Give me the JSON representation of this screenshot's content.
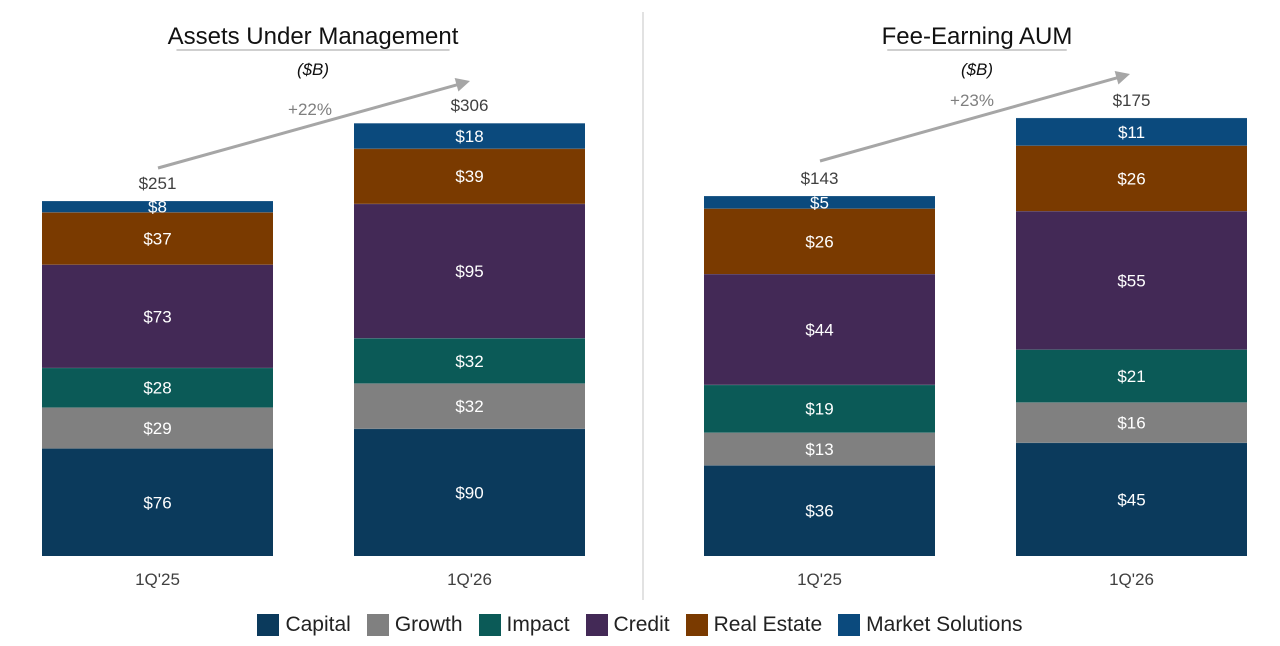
{
  "colors": {
    "Capital": "#0b3a5c",
    "Growth": "#808080",
    "Impact": "#0b5a57",
    "Credit": "#432956",
    "Real Estate": "#7a3a00",
    "Market Solutions": "#0b4a7d"
  },
  "legend": [
    {
      "label": "Capital",
      "icon": "square-swatch"
    },
    {
      "label": "Growth",
      "icon": "square-swatch"
    },
    {
      "label": "Impact",
      "icon": "square-swatch"
    },
    {
      "label": "Credit",
      "icon": "square-swatch"
    },
    {
      "label": "Real Estate",
      "icon": "square-swatch"
    },
    {
      "label": "Market Solutions",
      "icon": "square-swatch"
    }
  ],
  "chart_data": [
    {
      "type": "bar",
      "stacked": true,
      "title": "Assets Under Management",
      "subtitle": "($B)",
      "categories": [
        "1Q'25",
        "1Q'26"
      ],
      "series": [
        {
          "name": "Capital",
          "values": [
            76,
            90
          ],
          "labels": [
            "$76",
            "$90"
          ]
        },
        {
          "name": "Growth",
          "values": [
            29,
            32
          ],
          "labels": [
            "$29",
            "$32"
          ]
        },
        {
          "name": "Impact",
          "values": [
            28,
            32
          ],
          "labels": [
            "$28",
            "$32"
          ]
        },
        {
          "name": "Credit",
          "values": [
            73,
            95
          ],
          "labels": [
            "$73",
            "$95"
          ]
        },
        {
          "name": "Real Estate",
          "values": [
            37,
            39
          ],
          "labels": [
            "$37",
            "$39"
          ]
        },
        {
          "name": "Market Solutions",
          "values": [
            8,
            18
          ],
          "labels": [
            "$8",
            "$18"
          ]
        }
      ],
      "totals": [
        251,
        306
      ],
      "total_labels": [
        "$251",
        "$306"
      ],
      "growth_label": "+22%",
      "grid": false
    },
    {
      "type": "bar",
      "stacked": true,
      "title": "Fee-Earning AUM",
      "subtitle": "($B)",
      "categories": [
        "1Q'25",
        "1Q'26"
      ],
      "series": [
        {
          "name": "Capital",
          "values": [
            36,
            45
          ],
          "labels": [
            "$36",
            "$45"
          ]
        },
        {
          "name": "Growth",
          "values": [
            13,
            16
          ],
          "labels": [
            "$13",
            "$16"
          ]
        },
        {
          "name": "Impact",
          "values": [
            19,
            21
          ],
          "labels": [
            "$19",
            "$21"
          ]
        },
        {
          "name": "Credit",
          "values": [
            44,
            55
          ],
          "labels": [
            "$44",
            "$55"
          ]
        },
        {
          "name": "Real Estate",
          "values": [
            26,
            26
          ],
          "labels": [
            "$26",
            "$26"
          ]
        },
        {
          "name": "Market Solutions",
          "values": [
            5,
            11
          ],
          "labels": [
            "$5",
            "$11"
          ]
        }
      ],
      "totals": [
        143,
        175
      ],
      "total_labels": [
        "$143",
        "$175"
      ],
      "growth_label": "+23%",
      "grid": false
    }
  ]
}
